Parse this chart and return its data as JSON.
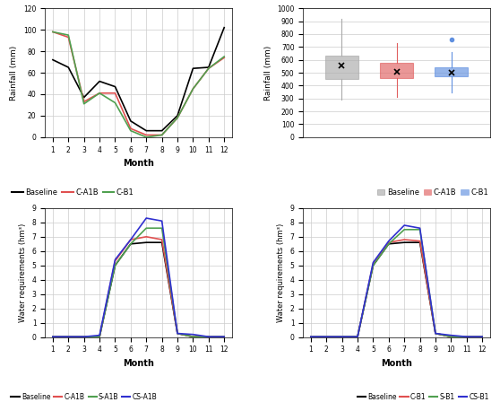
{
  "rainfall_line": {
    "months": [
      1,
      2,
      3,
      4,
      5,
      6,
      7,
      8,
      9,
      10,
      11,
      12
    ],
    "baseline": [
      72,
      65,
      37,
      52,
      47,
      15,
      6,
      6,
      20,
      64,
      65,
      102
    ],
    "c_a1b": [
      98,
      93,
      33,
      41,
      41,
      8,
      2,
      2,
      18,
      45,
      64,
      74
    ],
    "c_b1": [
      98,
      95,
      31,
      41,
      32,
      6,
      0,
      2,
      18,
      45,
      64,
      75
    ],
    "ylabel": "Rainfall (mm)",
    "xlabel": "Month",
    "ylim": [
      0,
      120
    ],
    "yticks": [
      0,
      20,
      40,
      60,
      80,
      100,
      120
    ]
  },
  "rainfall_box": {
    "baseline": {
      "q1": 450,
      "median": 555,
      "q3": 635,
      "whislo": 290,
      "whishi": 920,
      "mean": 555,
      "fliers": []
    },
    "c_a1b": {
      "q1": 460,
      "median": 495,
      "q3": 580,
      "whislo": 310,
      "whishi": 730,
      "mean": 505,
      "fliers": []
    },
    "c_b1": {
      "q1": 470,
      "median": 500,
      "q3": 545,
      "whislo": 350,
      "whishi": 660,
      "mean": 500,
      "fliers": [
        760
      ]
    },
    "ylabel": "Rainfall (mm)",
    "ylim": [
      0,
      1000
    ],
    "yticks": [
      0,
      100,
      200,
      300,
      400,
      500,
      600,
      700,
      800,
      900,
      1000
    ],
    "colors": [
      "#aaaaaa",
      "#e06060",
      "#6090e0"
    ],
    "labels": [
      "Baseline",
      "C-A1B",
      "C-B1"
    ]
  },
  "water_a1b": {
    "months": [
      1,
      2,
      3,
      4,
      5,
      6,
      7,
      8,
      9,
      10,
      11,
      12
    ],
    "baseline": [
      0.02,
      0.02,
      0.02,
      0.02,
      5.0,
      6.5,
      6.6,
      6.6,
      0.25,
      0.02,
      0.02,
      0.02
    ],
    "c_a1b": [
      0.02,
      0.02,
      0.02,
      0.02,
      5.3,
      6.8,
      7.0,
      6.8,
      0.25,
      0.02,
      0.02,
      0.02
    ],
    "s_a1b": [
      0.02,
      0.02,
      0.02,
      0.02,
      5.0,
      6.5,
      7.6,
      7.6,
      0.25,
      0.02,
      0.02,
      0.02
    ],
    "cs_a1b": [
      0.02,
      0.02,
      0.02,
      0.12,
      5.4,
      6.8,
      8.3,
      8.1,
      0.25,
      0.18,
      0.02,
      0.02
    ],
    "ylabel": "Water requirements (hm³)",
    "xlabel": "Month",
    "ylim": [
      0,
      9
    ],
    "yticks": [
      0,
      1,
      2,
      3,
      4,
      5,
      6,
      7,
      8,
      9
    ]
  },
  "water_b1": {
    "months": [
      1,
      2,
      3,
      4,
      5,
      6,
      7,
      8,
      9,
      10,
      11,
      12
    ],
    "baseline": [
      0.02,
      0.02,
      0.02,
      0.02,
      5.0,
      6.5,
      6.6,
      6.6,
      0.25,
      0.02,
      0.02,
      0.02
    ],
    "c_b1": [
      0.02,
      0.02,
      0.02,
      0.02,
      5.1,
      6.6,
      6.8,
      6.7,
      0.25,
      0.02,
      0.02,
      0.02
    ],
    "s_b1": [
      0.02,
      0.02,
      0.02,
      0.02,
      5.0,
      6.5,
      7.5,
      7.5,
      0.25,
      0.02,
      0.02,
      0.02
    ],
    "cs_b1": [
      0.02,
      0.02,
      0.02,
      0.02,
      5.2,
      6.7,
      7.8,
      7.6,
      0.25,
      0.12,
      0.02,
      0.02
    ],
    "ylabel": "Water requirements (hm³)",
    "xlabel": "Month",
    "ylim": [
      0,
      9
    ],
    "yticks": [
      0,
      1,
      2,
      3,
      4,
      5,
      6,
      7,
      8,
      9
    ]
  },
  "grid_color": "#cccccc",
  "background_color": "#ffffff",
  "line_colors": {
    "baseline": "#000000",
    "c_a1b": "#e05050",
    "c_b1": "#50a050",
    "s_a1b": "#50a050",
    "s_b1": "#50a050",
    "cs_a1b": "#3030d0",
    "cs_b1": "#3030d0"
  }
}
